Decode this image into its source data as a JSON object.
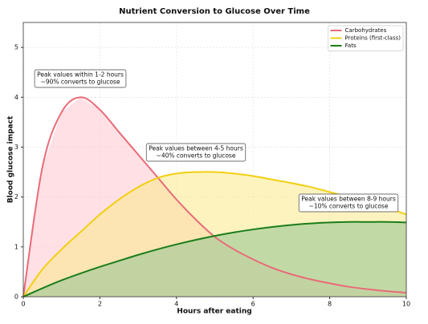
{
  "chart_data": {
    "type": "line",
    "title": "Nutrient Conversion to Glucose Over Time",
    "xlabel": "Hours after eating",
    "ylabel": "Blood glucose impact",
    "x": [
      0,
      0.5,
      1,
      1.5,
      2,
      2.5,
      3,
      3.5,
      4,
      4.5,
      5,
      5.5,
      6,
      6.5,
      7,
      7.5,
      8,
      8.5,
      9,
      9.5,
      10
    ],
    "series": [
      {
        "name": "Carbohydrates",
        "color": "#ea6a78",
        "fill": "#ffc8cf",
        "values": [
          0,
          2.6,
          3.7,
          4.0,
          3.75,
          3.3,
          2.85,
          2.4,
          1.95,
          1.55,
          1.2,
          0.95,
          0.75,
          0.58,
          0.45,
          0.35,
          0.27,
          0.2,
          0.15,
          0.11,
          0.08
        ]
      },
      {
        "name": "Proteins (first-class)",
        "color": "#f2cf10",
        "fill": "#fbe98a",
        "values": [
          0,
          0.55,
          0.95,
          1.3,
          1.65,
          1.95,
          2.2,
          2.38,
          2.47,
          2.5,
          2.5,
          2.47,
          2.42,
          2.35,
          2.28,
          2.2,
          2.1,
          2.0,
          1.9,
          1.78,
          1.65
        ]
      },
      {
        "name": "Fats",
        "color": "#1b7d1b",
        "fill": "#8fc48f",
        "values": [
          0,
          0.17,
          0.33,
          0.47,
          0.6,
          0.72,
          0.84,
          0.95,
          1.05,
          1.14,
          1.22,
          1.29,
          1.35,
          1.4,
          1.44,
          1.47,
          1.49,
          1.5,
          1.5,
          1.5,
          1.49
        ]
      }
    ],
    "annotations": [
      [
        "Peak values within 1-2 hours",
        "~90% converts to glucose"
      ],
      [
        "Peak values between 4-5 hours",
        "~40% converts to glucose"
      ],
      [
        "Peak values between 8-9 hours",
        "~10% converts to glucose"
      ]
    ],
    "xlim": [
      0,
      10
    ],
    "ylim": [
      0,
      5.5
    ],
    "xticks": [
      0,
      2,
      4,
      6,
      8,
      10
    ],
    "yticks": [
      0,
      1,
      2,
      3,
      4,
      5
    ],
    "grid": true,
    "legend": "upper right"
  }
}
